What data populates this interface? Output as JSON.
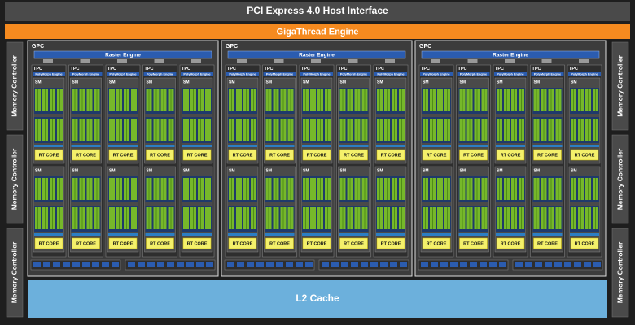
{
  "header": {
    "host_interface": "PCI Express 4.0 Host Interface",
    "gigathread": "GigaThread Engine"
  },
  "memory_controllers": {
    "left": [
      "Memory Controller",
      "Memory Controller",
      "Memory Controller"
    ],
    "right": [
      "Memory Controller",
      "Memory Controller",
      "Memory Controller"
    ]
  },
  "gpcs": [
    {
      "label": "GPC",
      "raster": "Raster Engine",
      "tpcs": [
        {
          "label": "TPC",
          "polymorph": "PolyMorph Engine",
          "sms": [
            {
              "label": "SM",
              "rt_core": "RT CORE"
            },
            {
              "label": "SM",
              "rt_core": "RT CORE"
            }
          ]
        },
        {
          "label": "TPC",
          "polymorph": "PolyMorph Engine",
          "sms": [
            {
              "label": "SM",
              "rt_core": "RT CORE"
            },
            {
              "label": "SM",
              "rt_core": "RT CORE"
            }
          ]
        },
        {
          "label": "TPC",
          "polymorph": "PolyMorph Engine",
          "sms": [
            {
              "label": "SM",
              "rt_core": "RT CORE"
            },
            {
              "label": "SM",
              "rt_core": "RT CORE"
            }
          ]
        },
        {
          "label": "TPC",
          "polymorph": "PolyMorph Engine",
          "sms": [
            {
              "label": "SM",
              "rt_core": "RT CORE"
            },
            {
              "label": "SM",
              "rt_core": "RT CORE"
            }
          ]
        },
        {
          "label": "TPC",
          "polymorph": "PolyMorph Engine",
          "sms": [
            {
              "label": "SM",
              "rt_core": "RT CORE"
            },
            {
              "label": "SM",
              "rt_core": "RT CORE"
            }
          ]
        }
      ]
    },
    {
      "label": "GPC",
      "raster": "Raster Engine",
      "tpcs": [
        {
          "label": "TPC",
          "polymorph": "PolyMorph Engine",
          "sms": [
            {
              "label": "SM",
              "rt_core": "RT CORE"
            },
            {
              "label": "SM",
              "rt_core": "RT CORE"
            }
          ]
        },
        {
          "label": "TPC",
          "polymorph": "PolyMorph Engine",
          "sms": [
            {
              "label": "SM",
              "rt_core": "RT CORE"
            },
            {
              "label": "SM",
              "rt_core": "RT CORE"
            }
          ]
        },
        {
          "label": "TPC",
          "polymorph": "PolyMorph Engine",
          "sms": [
            {
              "label": "SM",
              "rt_core": "RT CORE"
            },
            {
              "label": "SM",
              "rt_core": "RT CORE"
            }
          ]
        },
        {
          "label": "TPC",
          "polymorph": "PolyMorph Engine",
          "sms": [
            {
              "label": "SM",
              "rt_core": "RT CORE"
            },
            {
              "label": "SM",
              "rt_core": "RT CORE"
            }
          ]
        },
        {
          "label": "TPC",
          "polymorph": "PolyMorph Engine",
          "sms": [
            {
              "label": "SM",
              "rt_core": "RT CORE"
            },
            {
              "label": "SM",
              "rt_core": "RT CORE"
            }
          ]
        }
      ]
    },
    {
      "label": "GPC",
      "raster": "Raster Engine",
      "tpcs": [
        {
          "label": "TPC",
          "polymorph": "PolyMorph Engine",
          "sms": [
            {
              "label": "SM",
              "rt_core": "RT CORE"
            },
            {
              "label": "SM",
              "rt_core": "RT CORE"
            }
          ]
        },
        {
          "label": "TPC",
          "polymorph": "PolyMorph Engine",
          "sms": [
            {
              "label": "SM",
              "rt_core": "RT CORE"
            },
            {
              "label": "SM",
              "rt_core": "RT CORE"
            }
          ]
        },
        {
          "label": "TPC",
          "polymorph": "PolyMorph Engine",
          "sms": [
            {
              "label": "SM",
              "rt_core": "RT CORE"
            },
            {
              "label": "SM",
              "rt_core": "RT CORE"
            }
          ]
        },
        {
          "label": "TPC",
          "polymorph": "PolyMorph Engine",
          "sms": [
            {
              "label": "SM",
              "rt_core": "RT CORE"
            },
            {
              "label": "SM",
              "rt_core": "RT CORE"
            }
          ]
        },
        {
          "label": "TPC",
          "polymorph": "PolyMorph Engine",
          "sms": [
            {
              "label": "SM",
              "rt_core": "RT CORE"
            },
            {
              "label": "SM",
              "rt_core": "RT CORE"
            }
          ]
        }
      ]
    }
  ],
  "l2_cache": "L2 Cache"
}
